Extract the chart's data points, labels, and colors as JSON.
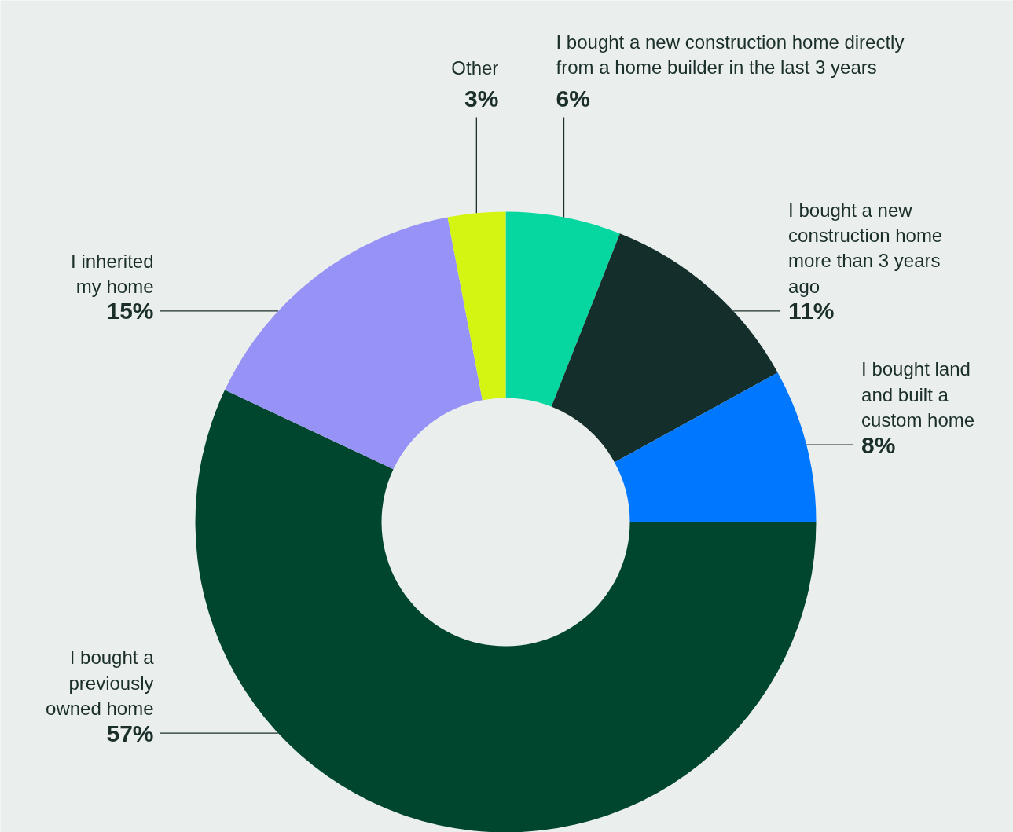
{
  "chart_data": {
    "type": "donut",
    "categories": [
      "I bought a new construction home directly from a home builder in the last 3 years",
      "I bought a new construction home more than 3 years ago",
      "I bought land and built a custom home",
      "I bought a previously owned home",
      "I inherited my home",
      "Other"
    ],
    "values": [
      6,
      11,
      8,
      57,
      15,
      3
    ],
    "colors": [
      "#06d6a0",
      "#142f2b",
      "#0077ff",
      "#00462e",
      "#9792f5",
      "#d4f511"
    ],
    "value_labels": [
      "6%",
      "11%",
      "8%",
      "57%",
      "15%",
      "3%"
    ]
  }
}
